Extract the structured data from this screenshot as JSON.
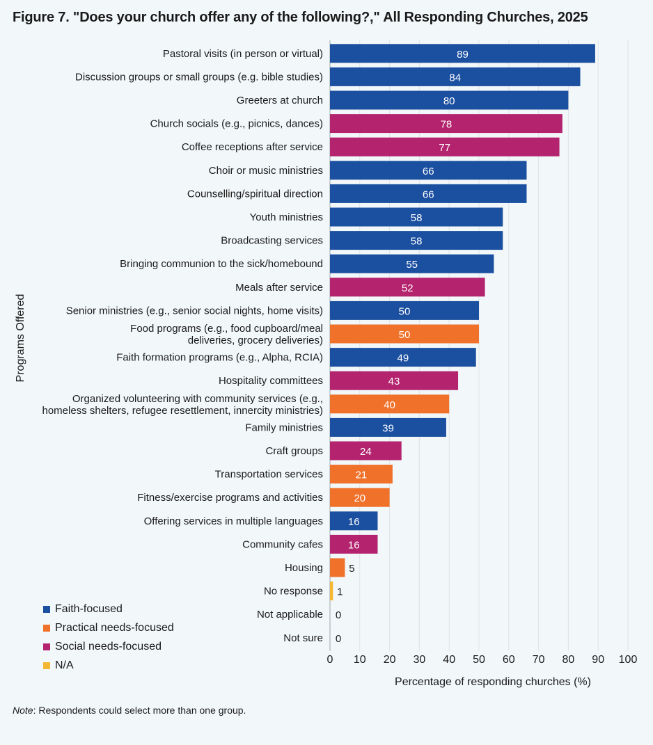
{
  "title": "Figure 7. \"Does your church offer any of the following?,\" All Responding Churches, 2025",
  "note": {
    "label": "Note",
    "text": ": Respondents could select more than one group."
  },
  "legend": [
    {
      "name": "Faith-focused",
      "color": "#1b4fa0"
    },
    {
      "name": "Practical needs-focused",
      "color": "#f0712a"
    },
    {
      "name": "Social needs-focused",
      "color": "#b3236e"
    },
    {
      "name": "N/A",
      "color": "#f4b731"
    }
  ],
  "chart_data": {
    "type": "bar",
    "orientation": "horizontal",
    "title": "Figure 7. \"Does your church offer any of the following?,\" All Responding Churches, 2025",
    "xlabel": "Percentage of responding churches (%)",
    "ylabel": "Programs Offered",
    "xlim": [
      0,
      100
    ],
    "xticks": [
      0,
      10,
      20,
      30,
      40,
      50,
      60,
      70,
      80,
      90,
      100
    ],
    "grid": "vertical",
    "legend_position": "bottom-left",
    "categories": [
      [
        "Pastoral visits (in person or virtual)"
      ],
      [
        "Discussion groups or small groups (e.g. bible studies)"
      ],
      [
        "Greeters at church"
      ],
      [
        "Church socials (e.g., picnics, dances)"
      ],
      [
        "Coffee receptions after service"
      ],
      [
        "Choir or music ministries"
      ],
      [
        "Counselling/spiritual direction"
      ],
      [
        "Youth ministries"
      ],
      [
        "Broadcasting services"
      ],
      [
        "Bringing communion to the sick/homebound"
      ],
      [
        "Meals after service"
      ],
      [
        "Senior ministries (e.g., senior social nights, home visits)"
      ],
      [
        "Food programs (e.g., food cupboard/meal",
        "deliveries, grocery deliveries)"
      ],
      [
        "Faith formation programs (e.g., Alpha, RCIA)"
      ],
      [
        "Hospitality committees"
      ],
      [
        "Organized volunteering with community services (e.g.,",
        "homeless shelters, refugee resettlement, innercity ministries)"
      ],
      [
        "Family ministries"
      ],
      [
        "Craft groups"
      ],
      [
        "Transportation services"
      ],
      [
        "Fitness/exercise programs and activities"
      ],
      [
        "Offering services in multiple languages"
      ],
      [
        "Community cafes"
      ],
      [
        "Housing"
      ],
      [
        "No response"
      ],
      [
        "Not applicable"
      ],
      [
        "Not sure"
      ]
    ],
    "values": [
      89,
      84,
      80,
      78,
      77,
      66,
      66,
      58,
      58,
      55,
      52,
      50,
      50,
      49,
      43,
      40,
      39,
      24,
      21,
      20,
      16,
      16,
      5,
      1,
      0,
      0
    ],
    "groups": [
      "Faith-focused",
      "Faith-focused",
      "Faith-focused",
      "Social needs-focused",
      "Social needs-focused",
      "Faith-focused",
      "Faith-focused",
      "Faith-focused",
      "Faith-focused",
      "Faith-focused",
      "Social needs-focused",
      "Faith-focused",
      "Practical needs-focused",
      "Faith-focused",
      "Social needs-focused",
      "Practical needs-focused",
      "Faith-focused",
      "Social needs-focused",
      "Practical needs-focused",
      "Practical needs-focused",
      "Faith-focused",
      "Social needs-focused",
      "Practical needs-focused",
      "N/A",
      "N/A",
      "N/A"
    ]
  }
}
